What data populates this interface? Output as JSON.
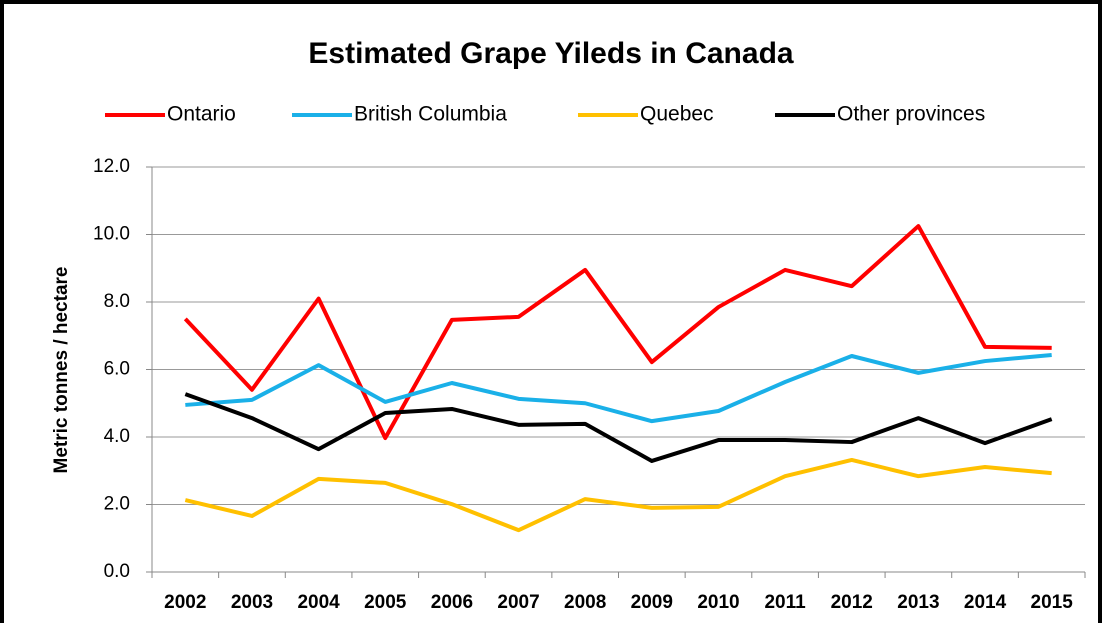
{
  "chart_data": {
    "type": "line",
    "title": "Estimated Grape Yileds in Canada",
    "y_label": "Metric tonnes / hectare",
    "categories": [
      "2002",
      "2003",
      "2004",
      "2005",
      "2006",
      "2007",
      "2008",
      "2009",
      "2010",
      "2011",
      "2012",
      "2013",
      "2014",
      "2015"
    ],
    "series": [
      {
        "name": "Ontario",
        "color": "#ff0000",
        "values": [
          7.5,
          5.4,
          8.1,
          3.97,
          7.47,
          7.56,
          8.95,
          6.22,
          7.85,
          8.95,
          8.47,
          10.25,
          6.67,
          6.64
        ]
      },
      {
        "name": "British Columbia",
        "color": "#1ab0e8",
        "values": [
          4.95,
          5.1,
          6.13,
          5.04,
          5.6,
          5.13,
          5.0,
          4.47,
          4.77,
          5.63,
          6.4,
          5.9,
          6.25,
          6.43
        ]
      },
      {
        "name": "Quebec",
        "color": "#ffc000",
        "values": [
          2.13,
          1.66,
          2.76,
          2.64,
          2.01,
          1.24,
          2.16,
          1.9,
          1.93,
          2.84,
          3.32,
          2.84,
          3.11,
          2.93
        ]
      },
      {
        "name": "Other provinces",
        "color": "#000000",
        "values": [
          5.27,
          4.56,
          3.64,
          4.71,
          4.83,
          4.36,
          4.39,
          3.29,
          3.91,
          3.91,
          3.85,
          4.56,
          3.82,
          4.53
        ]
      }
    ],
    "ylim": [
      0,
      12
    ],
    "yticks": [
      {
        "value": 0,
        "label": "0.0"
      },
      {
        "value": 2,
        "label": "2.0"
      },
      {
        "value": 4,
        "label": "4.0"
      },
      {
        "value": 6,
        "label": "6.0"
      },
      {
        "value": 8,
        "label": "8.0"
      },
      {
        "value": 10,
        "label": "10.0"
      },
      {
        "value": 12,
        "label": "12.0"
      }
    ],
    "grid": true,
    "legend": "top"
  }
}
